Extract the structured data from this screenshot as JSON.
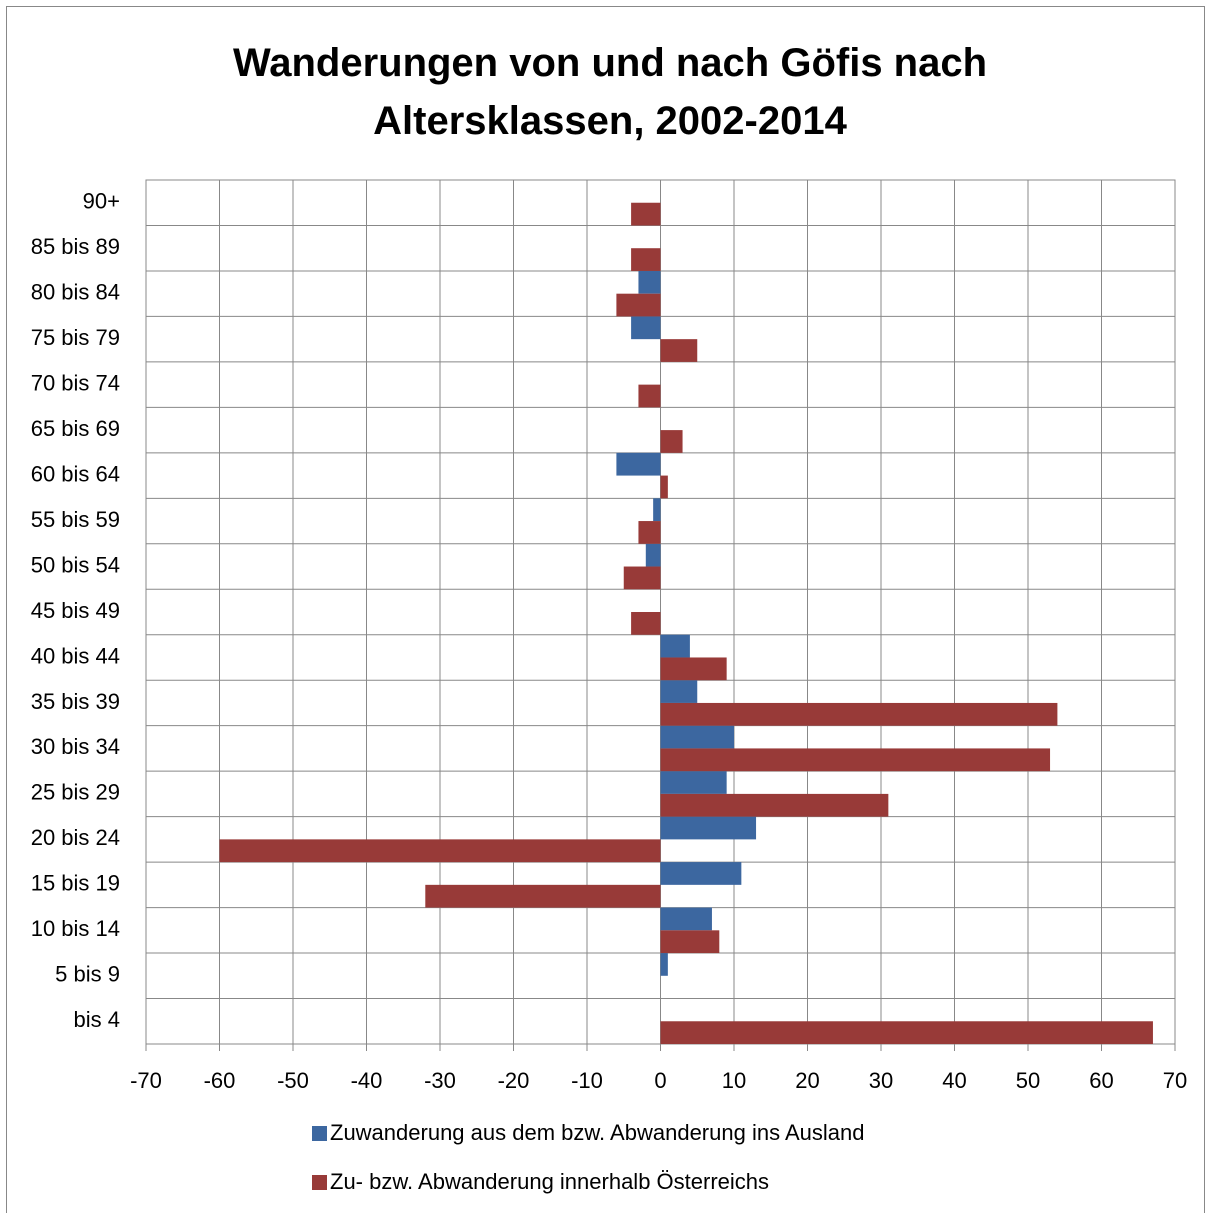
{
  "chart_data": {
    "type": "barh",
    "title": "Wanderungen von und nach Göfis nach Altersklassen, 2002-2014",
    "categories": [
      "90+",
      "85 bis 89",
      "80 bis 84",
      "75 bis 79",
      "70 bis 74",
      "65 bis 69",
      "60 bis 64",
      "55 bis 59",
      "50 bis 54",
      "45 bis 49",
      "40 bis 44",
      "35 bis 39",
      "30 bis 34",
      "25 bis 29",
      "20 bis 24",
      "15 bis 19",
      "10 bis 14",
      "5 bis 9",
      "bis 4"
    ],
    "series": [
      {
        "name": "Zuwanderung aus dem bzw. Abwanderung ins Ausland",
        "color": "#3c67a0",
        "values": [
          0,
          0,
          -3,
          -4,
          0,
          0,
          -6,
          -1,
          -2,
          0,
          4,
          5,
          10,
          9,
          13,
          11,
          7,
          1,
          0
        ]
      },
      {
        "name": "Zu- bzw. Abwanderung innerhalb Österreichs",
        "color": "#983a38",
        "values": [
          -4,
          -4,
          -6,
          5,
          -3,
          3,
          1,
          -3,
          -5,
          -4,
          9,
          54,
          53,
          31,
          -60,
          -32,
          8,
          0,
          67
        ]
      }
    ],
    "xlim": [
      -70,
      70
    ],
    "xticks": [
      -70,
      -60,
      -50,
      -40,
      -30,
      -20,
      -10,
      0,
      10,
      20,
      30,
      40,
      50,
      60,
      70
    ],
    "grid": true,
    "legend": "bottom"
  }
}
